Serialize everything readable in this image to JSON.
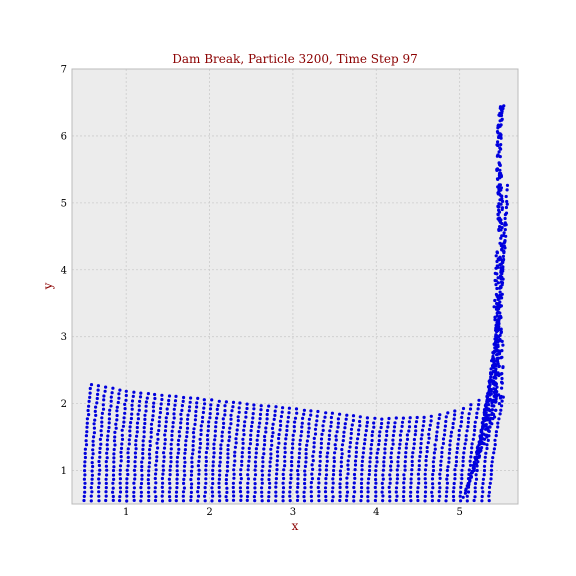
{
  "chart_data": {
    "type": "scatter",
    "title": "Dam Break, Particle 3200, Time Step  97",
    "xlabel": "x",
    "ylabel": "y",
    "xlim": [
      0.35,
      5.7
    ],
    "ylim": [
      0.5,
      7.0
    ],
    "x_ticks": [
      1,
      2,
      3,
      4,
      5
    ],
    "y_ticks": [
      1,
      2,
      3,
      4,
      5,
      6,
      7
    ],
    "grid": true,
    "colors": {
      "plot_background": "#ececec",
      "grid": "#cccccc",
      "points": "#0000dd",
      "title": "#8b0000",
      "axis_label": "#8b0000"
    },
    "series": [
      {
        "marker": "dot",
        "points_count": 3200,
        "summary": {
          "main_body_x_range": [
            0.5,
            5.5
          ],
          "main_body_y_range": [
            0.55,
            2.3
          ],
          "free_surface_samples": [
            [
              0.5,
              2.3
            ],
            [
              1.0,
              2.18
            ],
            [
              2.0,
              2.05
            ],
            [
              3.0,
              1.92
            ],
            [
              4.0,
              1.77
            ],
            [
              4.6,
              1.8
            ],
            [
              5.0,
              1.93
            ],
            [
              5.2,
              2.1
            ],
            [
              5.35,
              2.6
            ],
            [
              5.45,
              3.4
            ],
            [
              5.5,
              6.45
            ]
          ],
          "splash_peak": [
            5.53,
            6.45
          ]
        }
      }
    ]
  }
}
